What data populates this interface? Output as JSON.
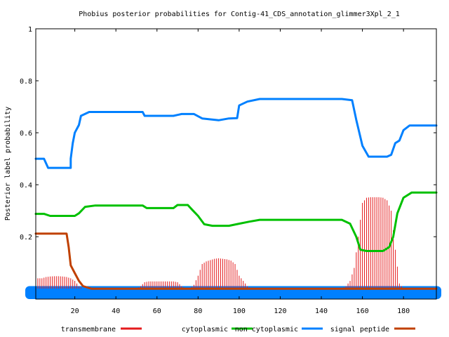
{
  "chart_data": {
    "type": "line",
    "title": "Phobius posterior probabilities for Contig-41_CDS_annotation_glimmer3Xpl_2_1",
    "xlabel": "",
    "ylabel": "Posterior label probability",
    "xlim": [
      1,
      196
    ],
    "ylim": [
      -0.04,
      1.0
    ],
    "x_ticks": [
      20,
      40,
      60,
      80,
      100,
      120,
      140,
      160,
      180
    ],
    "y_ticks": [
      0.2,
      0.4,
      0.6,
      0.8,
      1
    ],
    "y_tick_labels": [
      "0.2",
      "0.4",
      "0.6",
      "0.8",
      "1"
    ],
    "legend_position": "bottom",
    "series": [
      {
        "name": "transmembrane",
        "style": "impulses",
        "color": "#e41a1c",
        "points": [
          [
            4,
            0.04
          ],
          [
            6,
            0.045
          ],
          [
            8,
            0.047
          ],
          [
            10,
            0.048
          ],
          [
            12,
            0.048
          ],
          [
            14,
            0.047
          ],
          [
            16,
            0.045
          ],
          [
            18,
            0.04
          ],
          [
            20,
            0.03
          ],
          [
            22,
            0.01
          ],
          [
            24,
            0.0
          ],
          [
            26,
            0.0
          ],
          [
            50,
            0.0
          ],
          [
            52,
            0.01
          ],
          [
            54,
            0.025
          ],
          [
            56,
            0.028
          ],
          [
            60,
            0.028
          ],
          [
            64,
            0.028
          ],
          [
            68,
            0.028
          ],
          [
            70,
            0.025
          ],
          [
            72,
            0.01
          ],
          [
            74,
            0.0
          ],
          [
            76,
            0.0
          ],
          [
            78,
            0.015
          ],
          [
            80,
            0.05
          ],
          [
            82,
            0.095
          ],
          [
            84,
            0.105
          ],
          [
            86,
            0.11
          ],
          [
            88,
            0.115
          ],
          [
            90,
            0.117
          ],
          [
            92,
            0.115
          ],
          [
            94,
            0.113
          ],
          [
            96,
            0.108
          ],
          [
            98,
            0.095
          ],
          [
            100,
            0.05
          ],
          [
            102,
            0.03
          ],
          [
            104,
            0.01
          ],
          [
            106,
            0.0
          ],
          [
            150,
            0.0
          ],
          [
            152,
            0.01
          ],
          [
            154,
            0.03
          ],
          [
            156,
            0.08
          ],
          [
            158,
            0.2
          ],
          [
            160,
            0.33
          ],
          [
            162,
            0.35
          ],
          [
            164,
            0.352
          ],
          [
            166,
            0.352
          ],
          [
            168,
            0.352
          ],
          [
            170,
            0.35
          ],
          [
            172,
            0.34
          ],
          [
            174,
            0.3
          ],
          [
            176,
            0.15
          ],
          [
            178,
            0.02
          ],
          [
            180,
            0.0
          ],
          [
            196,
            0.0
          ]
        ]
      },
      {
        "name": "cytoplasmic",
        "style": "line",
        "color": "#00c000",
        "points": [
          [
            1,
            0.288
          ],
          [
            5,
            0.288
          ],
          [
            8,
            0.28
          ],
          [
            20,
            0.28
          ],
          [
            22,
            0.29
          ],
          [
            25,
            0.315
          ],
          [
            30,
            0.32
          ],
          [
            53,
            0.32
          ],
          [
            55,
            0.31
          ],
          [
            68,
            0.31
          ],
          [
            70,
            0.322
          ],
          [
            75,
            0.322
          ],
          [
            77,
            0.305
          ],
          [
            80,
            0.28
          ],
          [
            83,
            0.248
          ],
          [
            87,
            0.242
          ],
          [
            95,
            0.242
          ],
          [
            100,
            0.25
          ],
          [
            105,
            0.258
          ],
          [
            110,
            0.265
          ],
          [
            150,
            0.265
          ],
          [
            154,
            0.25
          ],
          [
            157,
            0.2
          ],
          [
            159,
            0.15
          ],
          [
            162,
            0.145
          ],
          [
            170,
            0.145
          ],
          [
            173,
            0.16
          ],
          [
            175,
            0.2
          ],
          [
            177,
            0.29
          ],
          [
            180,
            0.35
          ],
          [
            184,
            0.37
          ],
          [
            196,
            0.37
          ]
        ]
      },
      {
        "name": "non cytoplasmic",
        "style": "line",
        "color": "#0080ff",
        "points": [
          [
            1,
            0.5
          ],
          [
            5,
            0.5
          ],
          [
            7,
            0.465
          ],
          [
            18,
            0.465
          ],
          [
            18,
            0.5
          ],
          [
            19,
            0.56
          ],
          [
            20,
            0.6
          ],
          [
            22,
            0.63
          ],
          [
            23,
            0.665
          ],
          [
            27,
            0.68
          ],
          [
            53,
            0.68
          ],
          [
            54,
            0.665
          ],
          [
            68,
            0.665
          ],
          [
            72,
            0.672
          ],
          [
            78,
            0.672
          ],
          [
            82,
            0.655
          ],
          [
            90,
            0.648
          ],
          [
            95,
            0.655
          ],
          [
            99,
            0.656
          ],
          [
            100,
            0.705
          ],
          [
            104,
            0.72
          ],
          [
            110,
            0.73
          ],
          [
            150,
            0.73
          ],
          [
            155,
            0.725
          ],
          [
            157,
            0.65
          ],
          [
            160,
            0.55
          ],
          [
            163,
            0.508
          ],
          [
            172,
            0.508
          ],
          [
            174,
            0.515
          ],
          [
            176,
            0.56
          ],
          [
            178,
            0.57
          ],
          [
            180,
            0.61
          ],
          [
            183,
            0.628
          ],
          [
            196,
            0.628
          ]
        ]
      },
      {
        "name": "signal peptide",
        "style": "line",
        "color": "#c04000",
        "points": [
          [
            1,
            0.212
          ],
          [
            16,
            0.212
          ],
          [
            17,
            0.16
          ],
          [
            18,
            0.09
          ],
          [
            20,
            0.06
          ],
          [
            22,
            0.03
          ],
          [
            24,
            0.01
          ],
          [
            28,
            0.0
          ],
          [
            196,
            0.0
          ]
        ]
      }
    ],
    "bottom_band": {
      "from": -0.04,
      "to": 0.01,
      "color": "#0080ff"
    }
  }
}
